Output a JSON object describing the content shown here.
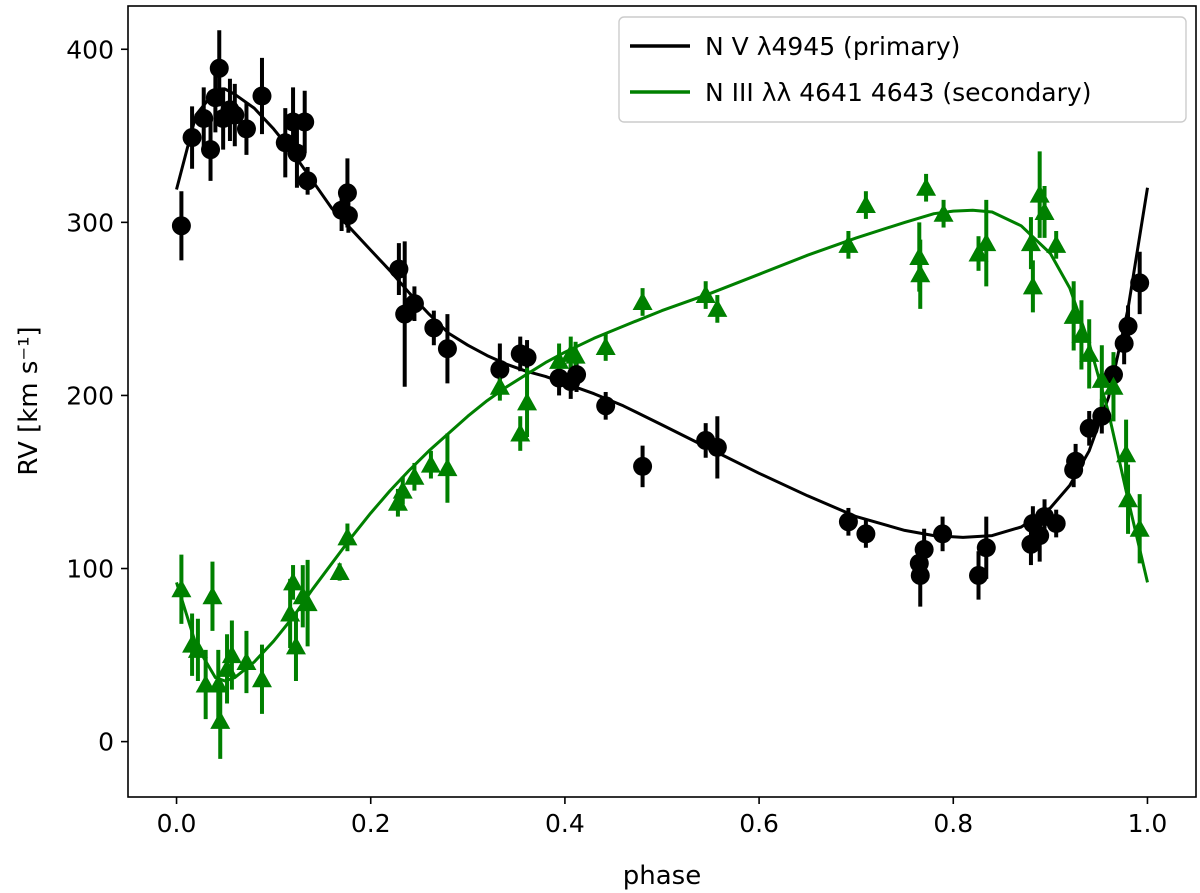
{
  "chart_data": {
    "type": "scatter",
    "xlabel": "phase",
    "ylabel": "RV [km s⁻¹]",
    "xlim": [
      -0.05,
      1.05
    ],
    "ylim": [
      -32,
      425
    ],
    "xticks": [
      "0.0",
      "0.2",
      "0.4",
      "0.6",
      "0.8",
      "1.0"
    ],
    "xtick_values": [
      0.0,
      0.2,
      0.4,
      0.6,
      0.8,
      1.0
    ],
    "yticks": [
      "0",
      "100",
      "200",
      "300",
      "400"
    ],
    "ytick_values": [
      0,
      100,
      200,
      300,
      400
    ],
    "grid": false,
    "legend_position": "top-right",
    "series": [
      {
        "name": "N V λ4945 (primary)",
        "color": "#000000",
        "marker": "circle",
        "points": [
          {
            "x": 0.005,
            "y": 298,
            "err": 20
          },
          {
            "x": 0.016,
            "y": 349,
            "err": 18
          },
          {
            "x": 0.028,
            "y": 360,
            "err": 18
          },
          {
            "x": 0.035,
            "y": 342,
            "err": 18
          },
          {
            "x": 0.04,
            "y": 372,
            "err": 20
          },
          {
            "x": 0.044,
            "y": 389,
            "err": 22
          },
          {
            "x": 0.048,
            "y": 360,
            "err": 18
          },
          {
            "x": 0.055,
            "y": 365,
            "err": 18
          },
          {
            "x": 0.06,
            "y": 362,
            "err": 18
          },
          {
            "x": 0.072,
            "y": 354,
            "err": 15
          },
          {
            "x": 0.088,
            "y": 373,
            "err": 22
          },
          {
            "x": 0.112,
            "y": 346,
            "err": 20
          },
          {
            "x": 0.12,
            "y": 358,
            "err": 20
          },
          {
            "x": 0.124,
            "y": 340,
            "err": 20
          },
          {
            "x": 0.132,
            "y": 358,
            "err": 18
          },
          {
            "x": 0.135,
            "y": 324,
            "err": 8
          },
          {
            "x": 0.17,
            "y": 307,
            "err": 12
          },
          {
            "x": 0.176,
            "y": 317,
            "err": 20
          },
          {
            "x": 0.177,
            "y": 304,
            "err": 10
          },
          {
            "x": 0.229,
            "y": 273,
            "err": 15
          },
          {
            "x": 0.235,
            "y": 247,
            "err": 42
          },
          {
            "x": 0.245,
            "y": 253,
            "err": 10
          },
          {
            "x": 0.265,
            "y": 239,
            "err": 10
          },
          {
            "x": 0.279,
            "y": 227,
            "err": 20
          },
          {
            "x": 0.333,
            "y": 215,
            "err": 15
          },
          {
            "x": 0.354,
            "y": 224,
            "err": 10
          },
          {
            "x": 0.361,
            "y": 222,
            "err": 10
          },
          {
            "x": 0.394,
            "y": 210,
            "err": 10
          },
          {
            "x": 0.406,
            "y": 208,
            "err": 10
          },
          {
            "x": 0.412,
            "y": 212,
            "err": 10
          },
          {
            "x": 0.442,
            "y": 194,
            "err": 8
          },
          {
            "x": 0.48,
            "y": 159,
            "err": 12
          },
          {
            "x": 0.545,
            "y": 174,
            "err": 10
          },
          {
            "x": 0.557,
            "y": 170,
            "err": 18
          },
          {
            "x": 0.692,
            "y": 127,
            "err": 8
          },
          {
            "x": 0.71,
            "y": 120,
            "err": 8
          },
          {
            "x": 0.765,
            "y": 103,
            "err": 12
          },
          {
            "x": 0.766,
            "y": 96,
            "err": 18
          },
          {
            "x": 0.77,
            "y": 111,
            "err": 12
          },
          {
            "x": 0.789,
            "y": 120,
            "err": 10
          },
          {
            "x": 0.826,
            "y": 96,
            "err": 14
          },
          {
            "x": 0.834,
            "y": 112,
            "err": 18
          },
          {
            "x": 0.88,
            "y": 114,
            "err": 12
          },
          {
            "x": 0.882,
            "y": 126,
            "err": 10
          },
          {
            "x": 0.889,
            "y": 119,
            "err": 15
          },
          {
            "x": 0.894,
            "y": 130,
            "err": 10
          },
          {
            "x": 0.906,
            "y": 126,
            "err": 8
          },
          {
            "x": 0.924,
            "y": 157,
            "err": 10
          },
          {
            "x": 0.926,
            "y": 162,
            "err": 10
          },
          {
            "x": 0.94,
            "y": 181,
            "err": 10
          },
          {
            "x": 0.953,
            "y": 188,
            "err": 10
          },
          {
            "x": 0.965,
            "y": 212,
            "err": 10
          },
          {
            "x": 0.976,
            "y": 230,
            "err": 12
          },
          {
            "x": 0.98,
            "y": 240,
            "err": 12
          },
          {
            "x": 0.992,
            "y": 265,
            "err": 18
          }
        ],
        "fit": [
          [
            0.0,
            319
          ],
          [
            0.02,
            362
          ],
          [
            0.04,
            376
          ],
          [
            0.05,
            377
          ],
          [
            0.06,
            374
          ],
          [
            0.08,
            366
          ],
          [
            0.1,
            354
          ],
          [
            0.12,
            340
          ],
          [
            0.14,
            324
          ],
          [
            0.16,
            308
          ],
          [
            0.18,
            296
          ],
          [
            0.2,
            284
          ],
          [
            0.22,
            272
          ],
          [
            0.24,
            259
          ],
          [
            0.26,
            247
          ],
          [
            0.28,
            236
          ],
          [
            0.3,
            229
          ],
          [
            0.32,
            223
          ],
          [
            0.34,
            218
          ],
          [
            0.36,
            214
          ],
          [
            0.38,
            211
          ],
          [
            0.4,
            207
          ],
          [
            0.43,
            201
          ],
          [
            0.46,
            194
          ],
          [
            0.5,
            183
          ],
          [
            0.55,
            169
          ],
          [
            0.6,
            155
          ],
          [
            0.65,
            142
          ],
          [
            0.7,
            130
          ],
          [
            0.75,
            122
          ],
          [
            0.78,
            119
          ],
          [
            0.81,
            118
          ],
          [
            0.84,
            119
          ],
          [
            0.87,
            124
          ],
          [
            0.9,
            135
          ],
          [
            0.92,
            148
          ],
          [
            0.94,
            168
          ],
          [
            0.96,
            199
          ],
          [
            0.98,
            250
          ],
          [
            1.0,
            320
          ]
        ]
      },
      {
        "name": "N III λλ 4641 4643 (secondary)",
        "color": "#008000",
        "marker": "triangle",
        "points": [
          {
            "x": 0.005,
            "y": 88,
            "err": 20
          },
          {
            "x": 0.016,
            "y": 56,
            "err": 18
          },
          {
            "x": 0.022,
            "y": 53,
            "err": 18
          },
          {
            "x": 0.03,
            "y": 33,
            "err": 20
          },
          {
            "x": 0.037,
            "y": 84,
            "err": 20
          },
          {
            "x": 0.043,
            "y": 33,
            "err": 20
          },
          {
            "x": 0.045,
            "y": 12,
            "err": 22
          },
          {
            "x": 0.052,
            "y": 42,
            "err": 20
          },
          {
            "x": 0.057,
            "y": 50,
            "err": 20
          },
          {
            "x": 0.072,
            "y": 46,
            "err": 18
          },
          {
            "x": 0.088,
            "y": 36,
            "err": 20
          },
          {
            "x": 0.117,
            "y": 74,
            "err": 20
          },
          {
            "x": 0.12,
            "y": 92,
            "err": 10
          },
          {
            "x": 0.123,
            "y": 55,
            "err": 20
          },
          {
            "x": 0.13,
            "y": 84,
            "err": 18
          },
          {
            "x": 0.135,
            "y": 80,
            "err": 25
          },
          {
            "x": 0.168,
            "y": 98,
            "err": 5
          },
          {
            "x": 0.176,
            "y": 118,
            "err": 8
          },
          {
            "x": 0.228,
            "y": 138,
            "err": 8
          },
          {
            "x": 0.233,
            "y": 145,
            "err": 8
          },
          {
            "x": 0.245,
            "y": 153,
            "err": 8
          },
          {
            "x": 0.262,
            "y": 160,
            "err": 8
          },
          {
            "x": 0.279,
            "y": 158,
            "err": 20
          },
          {
            "x": 0.333,
            "y": 205,
            "err": 8
          },
          {
            "x": 0.354,
            "y": 178,
            "err": 10
          },
          {
            "x": 0.361,
            "y": 196,
            "err": 20
          },
          {
            "x": 0.394,
            "y": 220,
            "err": 10
          },
          {
            "x": 0.406,
            "y": 224,
            "err": 10
          },
          {
            "x": 0.411,
            "y": 223,
            "err": 8
          },
          {
            "x": 0.442,
            "y": 228,
            "err": 8
          },
          {
            "x": 0.48,
            "y": 254,
            "err": 8
          },
          {
            "x": 0.545,
            "y": 258,
            "err": 8
          },
          {
            "x": 0.557,
            "y": 250,
            "err": 8
          },
          {
            "x": 0.692,
            "y": 287,
            "err": 8
          },
          {
            "x": 0.71,
            "y": 310,
            "err": 8
          },
          {
            "x": 0.765,
            "y": 280,
            "err": 20
          },
          {
            "x": 0.766,
            "y": 270,
            "err": 20
          },
          {
            "x": 0.772,
            "y": 320,
            "err": 8
          },
          {
            "x": 0.79,
            "y": 305,
            "err": 8
          },
          {
            "x": 0.826,
            "y": 282,
            "err": 10
          },
          {
            "x": 0.834,
            "y": 288,
            "err": 25
          },
          {
            "x": 0.88,
            "y": 288,
            "err": 15
          },
          {
            "x": 0.882,
            "y": 263,
            "err": 15
          },
          {
            "x": 0.889,
            "y": 316,
            "err": 25
          },
          {
            "x": 0.894,
            "y": 306,
            "err": 15
          },
          {
            "x": 0.906,
            "y": 287,
            "err": 8
          },
          {
            "x": 0.924,
            "y": 246,
            "err": 20
          },
          {
            "x": 0.932,
            "y": 235,
            "err": 20
          },
          {
            "x": 0.94,
            "y": 224,
            "err": 20
          },
          {
            "x": 0.953,
            "y": 209,
            "err": 20
          },
          {
            "x": 0.965,
            "y": 205,
            "err": 20
          },
          {
            "x": 0.978,
            "y": 166,
            "err": 20
          },
          {
            "x": 0.98,
            "y": 140,
            "err": 20
          },
          {
            "x": 0.992,
            "y": 123,
            "err": 20
          }
        ],
        "fit": [
          [
            0.0,
            92
          ],
          [
            0.02,
            56
          ],
          [
            0.04,
            37
          ],
          [
            0.05,
            35
          ],
          [
            0.06,
            37
          ],
          [
            0.08,
            46
          ],
          [
            0.1,
            58
          ],
          [
            0.12,
            72
          ],
          [
            0.14,
            88
          ],
          [
            0.16,
            103
          ],
          [
            0.18,
            118
          ],
          [
            0.2,
            132
          ],
          [
            0.22,
            145
          ],
          [
            0.24,
            157
          ],
          [
            0.26,
            168
          ],
          [
            0.28,
            178
          ],
          [
            0.3,
            188
          ],
          [
            0.32,
            197
          ],
          [
            0.34,
            205
          ],
          [
            0.36,
            212
          ],
          [
            0.38,
            219
          ],
          [
            0.4,
            225
          ],
          [
            0.43,
            233
          ],
          [
            0.46,
            240
          ],
          [
            0.5,
            249
          ],
          [
            0.55,
            259
          ],
          [
            0.6,
            270
          ],
          [
            0.65,
            281
          ],
          [
            0.7,
            291
          ],
          [
            0.75,
            300
          ],
          [
            0.78,
            305
          ],
          [
            0.8,
            306.5
          ],
          [
            0.82,
            307
          ],
          [
            0.84,
            306
          ],
          [
            0.87,
            298
          ],
          [
            0.9,
            282
          ],
          [
            0.92,
            262
          ],
          [
            0.94,
            230
          ],
          [
            0.96,
            190
          ],
          [
            0.98,
            140
          ],
          [
            1.0,
            92
          ]
        ]
      }
    ]
  }
}
